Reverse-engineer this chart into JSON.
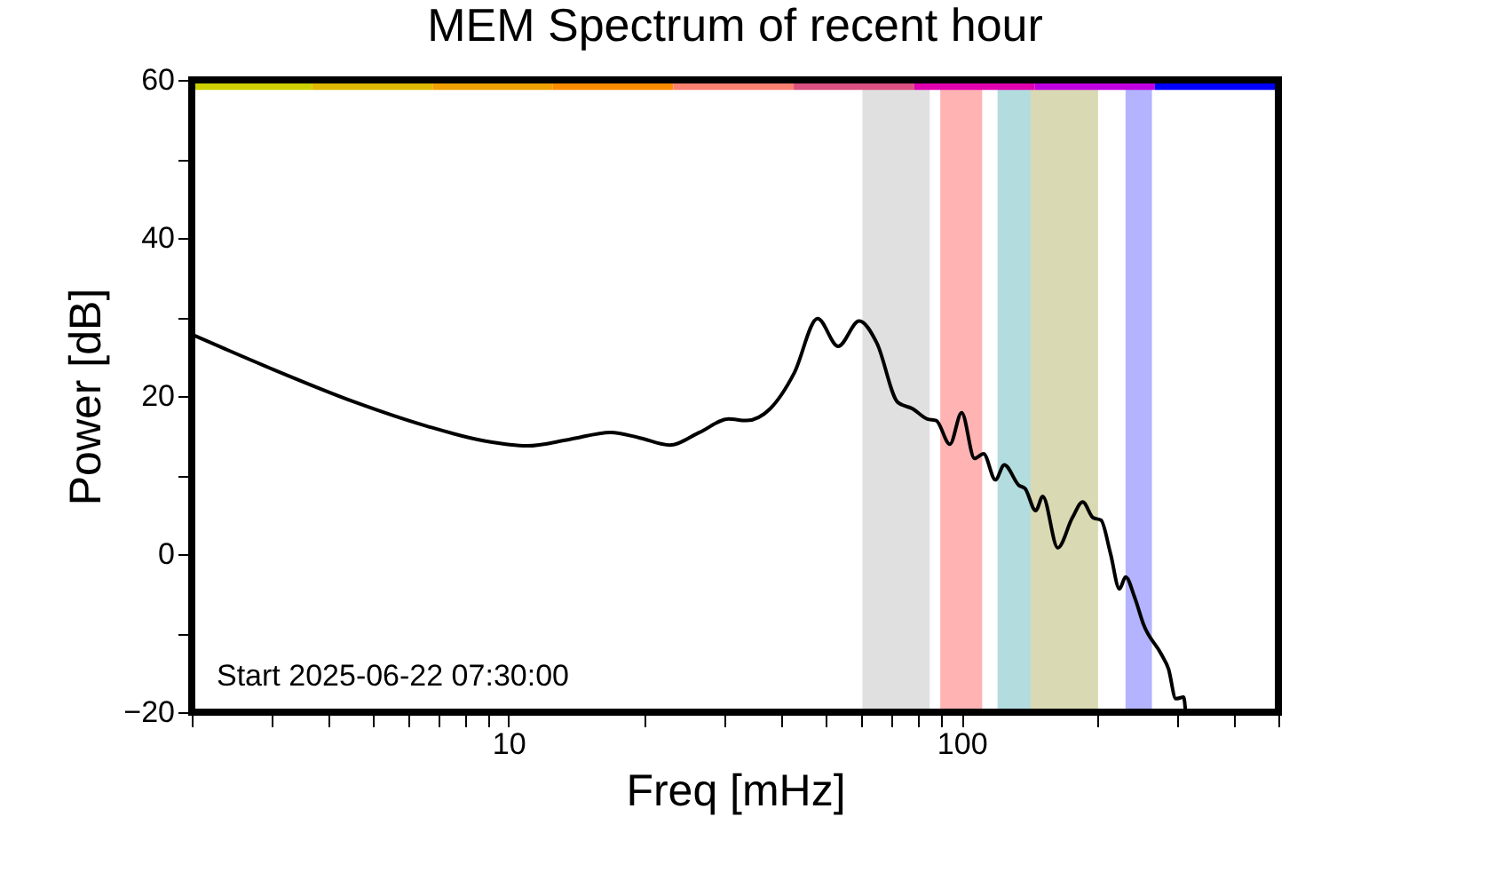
{
  "chart_data": {
    "type": "line",
    "title": "MEM Spectrum of recent hour",
    "xlabel": "Freq [mHz]",
    "ylabel": "Power [dB]",
    "annotations": [
      "Start 2025-06-22 07:30:00"
    ],
    "log": "x",
    "grid": false,
    "marker": "none",
    "line_style": "solid",
    "xlim": [
      2,
      500
    ],
    "xticks": [
      {
        "value": 2,
        "label": null
      },
      {
        "value": 3,
        "label": null
      },
      {
        "value": 4,
        "label": null
      },
      {
        "value": 5,
        "label": null
      },
      {
        "value": 6,
        "label": null
      },
      {
        "value": 7,
        "label": null
      },
      {
        "value": 8,
        "label": null
      },
      {
        "value": 9,
        "label": null
      },
      10,
      {
        "value": 20,
        "label": null
      },
      {
        "value": 30,
        "label": null
      },
      {
        "value": 40,
        "label": null
      },
      {
        "value": 50,
        "label": null
      },
      {
        "value": 60,
        "label": null
      },
      {
        "value": 70,
        "label": null
      },
      {
        "value": 80,
        "label": null
      },
      {
        "value": 90,
        "label": null
      },
      100,
      {
        "value": 200,
        "label": null
      },
      {
        "value": 300,
        "label": null
      },
      {
        "value": 400,
        "label": null
      },
      {
        "value": 500,
        "label": null
      }
    ],
    "ylim": [
      -20,
      60
    ],
    "yticks": [
      {
        "value": -20,
        "label": "−20"
      },
      {
        "value": -10,
        "label": null
      },
      0,
      {
        "value": 10,
        "label": null
      },
      20,
      {
        "value": 30,
        "label": null
      },
      40,
      {
        "value": 50,
        "label": null
      },
      60
    ],
    "bands": [
      {
        "axis": "x",
        "from": 60.4,
        "to": 85,
        "label": null,
        "color": "#e0e0e0"
      },
      {
        "axis": "x",
        "from": 89.7,
        "to": 111,
        "label": null,
        "color": "#ffb3b3"
      },
      {
        "axis": "x",
        "from": 120,
        "to": 142,
        "label": null,
        "color": "#b3dcdf"
      },
      {
        "axis": "x",
        "from": 142,
        "to": 200,
        "label": null,
        "color": "#d9d9b3"
      },
      {
        "axis": "x",
        "from": 230,
        "to": 263,
        "label": null,
        "color": "#b3b3ff"
      }
    ],
    "series": [
      {
        "color": "#000000",
        "x": [
          2,
          2.93,
          4.6,
          6.6,
          8.9,
          11.0,
          13.6,
          16.8,
          19.5,
          22.7,
          26.4,
          30.6,
          33.5,
          37.8,
          42.7,
          48.1,
          53.4,
          59.4,
          65.0,
          72.3,
          77.9,
          84.0,
          87.9,
          94.2,
          100,
          106.8,
          111.8,
          118.7,
          124.2,
          133.8,
          138,
          145.7,
          151,
          163,
          175.5,
          185,
          195,
          203,
          213,
          223,
          230,
          241,
          252,
          276,
          286,
          297,
          309,
          312
        ],
        "values": [
          27.8,
          23.7,
          19.2,
          16.2,
          14.3,
          13.7,
          14.5,
          15.4,
          14.7,
          13.8,
          15.4,
          17.1,
          16.9,
          18.4,
          22.9,
          29.8,
          26.3,
          29.5,
          26.7,
          19.2,
          18.4,
          17.1,
          16.9,
          13.9,
          17.9,
          12.1,
          12.7,
          9.4,
          11.3,
          8.7,
          8.3,
          5.5,
          7.3,
          0.8,
          4.6,
          6.6,
          4.6,
          4.3,
          0.1,
          -4.4,
          -2.9,
          -5.5,
          -8.9,
          -12.7,
          -14.5,
          -18.3,
          -18.1,
          -20
        ]
      },
      {
        "color": "#ccd000",
        "x": [
          2,
          3.69
        ],
        "values": [
          59.3,
          59.3
        ]
      },
      {
        "color": "#e0b800",
        "x": [
          3.69,
          6.8
        ],
        "values": [
          59.3,
          59.3
        ]
      },
      {
        "color": "#f0a000",
        "x": [
          6.8,
          12.5
        ],
        "values": [
          59.3,
          59.3
        ]
      },
      {
        "color": "#ff8c00",
        "x": [
          12.5,
          23.1
        ],
        "values": [
          59.3,
          59.3
        ]
      },
      {
        "color": "#fa8072",
        "x": [
          23.1,
          42.6
        ],
        "values": [
          59.3,
          59.3
        ]
      },
      {
        "color": "#db5080",
        "x": [
          42.6,
          78.6
        ],
        "values": [
          59.3,
          59.3
        ]
      },
      {
        "color": "#e000b0",
        "x": [
          78.6,
          145
        ],
        "values": [
          59.3,
          59.3
        ]
      },
      {
        "color": "#c000e0",
        "x": [
          145,
          267
        ],
        "values": [
          59.3,
          59.3
        ]
      },
      {
        "color": "#0000ff",
        "x": [
          267,
          500
        ],
        "values": [
          59.3,
          59.3
        ]
      }
    ]
  }
}
